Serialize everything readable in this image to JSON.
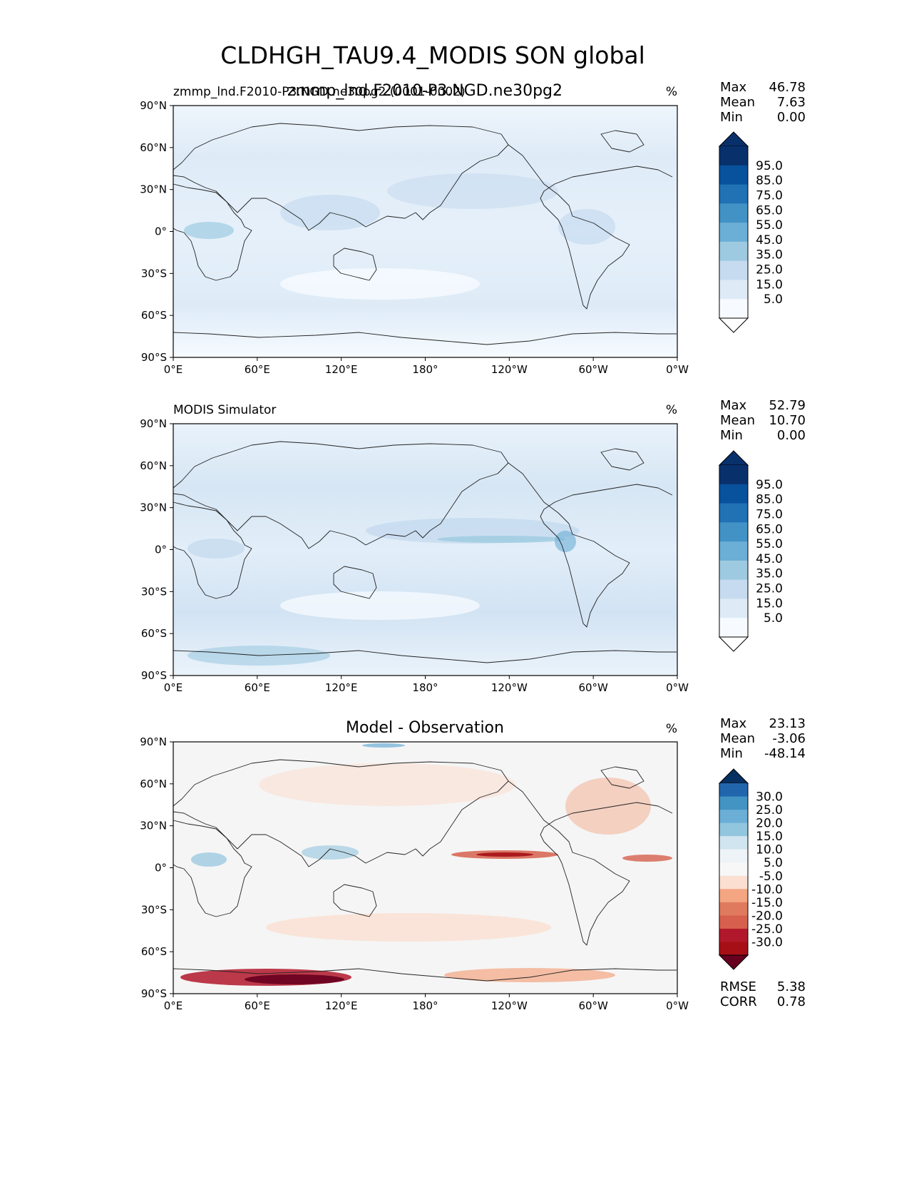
{
  "figure": {
    "title": "CLDHGH_TAU9.4_MODIS SON global"
  },
  "chart_data": [
    {
      "type": "heatmap",
      "panel": "test",
      "title": "zmmp_lnd.F2010-P3.NGD.ne30pg2",
      "left_label": "zmmp_lnd.F2010-P3.NGD.ne30pg2 (0001-0002)",
      "units": "%",
      "x_ticks": [
        "0°E",
        "60°E",
        "120°E",
        "180°",
        "120°W",
        "60°W",
        "0°W"
      ],
      "y_ticks": [
        "90°N",
        "60°N",
        "30°N",
        "0°",
        "30°S",
        "60°S",
        "90°S"
      ],
      "stats": {
        "labels": [
          "Max",
          "Mean",
          "Min"
        ],
        "values": [
          "46.78",
          "7.63",
          "0.00"
        ]
      },
      "colorbar": {
        "extend": "both",
        "labels": [
          "95.0",
          "85.0",
          "75.0",
          "65.0",
          "55.0",
          "45.0",
          "35.0",
          "25.0",
          "15.0",
          "5.0"
        ],
        "colors": [
          "#08306b",
          "#08519c",
          "#2171b5",
          "#4292c6",
          "#6baed6",
          "#9ecae1",
          "#c6dbef",
          "#deebf7",
          "#f7fbff"
        ],
        "over_color": "#08306b",
        "under_color": "#ffffff"
      }
    },
    {
      "type": "heatmap",
      "panel": "reference",
      "title": "",
      "left_label": "MODIS Simulator",
      "units": "%",
      "x_ticks": [
        "0°E",
        "60°E",
        "120°E",
        "180°",
        "120°W",
        "60°W",
        "0°W"
      ],
      "y_ticks": [
        "90°N",
        "60°N",
        "30°N",
        "0°",
        "30°S",
        "60°S",
        "90°S"
      ],
      "stats": {
        "labels": [
          "Max",
          "Mean",
          "Min"
        ],
        "values": [
          "52.79",
          "10.70",
          "0.00"
        ]
      },
      "colorbar": {
        "extend": "both",
        "labels": [
          "95.0",
          "85.0",
          "75.0",
          "65.0",
          "55.0",
          "45.0",
          "35.0",
          "25.0",
          "15.0",
          "5.0"
        ],
        "colors": [
          "#08306b",
          "#08519c",
          "#2171b5",
          "#4292c6",
          "#6baed6",
          "#9ecae1",
          "#c6dbef",
          "#deebf7",
          "#f7fbff"
        ],
        "over_color": "#08306b",
        "under_color": "#ffffff"
      }
    },
    {
      "type": "heatmap",
      "panel": "difference",
      "title": "Model - Observation",
      "left_label": "",
      "units": "%",
      "x_ticks": [
        "0°E",
        "60°E",
        "120°E",
        "180°",
        "120°W",
        "60°W",
        "0°W"
      ],
      "y_ticks": [
        "90°N",
        "60°N",
        "30°N",
        "0°",
        "30°S",
        "60°S",
        "90°S"
      ],
      "stats": {
        "labels": [
          "Max",
          "Mean",
          "Min"
        ],
        "values": [
          "23.13",
          "-3.06",
          "-48.14"
        ]
      },
      "extra_stats": {
        "labels": [
          "RMSE",
          "CORR"
        ],
        "values": [
          "5.38",
          "0.78"
        ]
      },
      "colorbar": {
        "extend": "both",
        "labels": [
          "30.0",
          "25.0",
          "20.0",
          "15.0",
          "10.0",
          "5.0",
          "-5.0",
          "-10.0",
          "-15.0",
          "-20.0",
          "-25.0",
          "-30.0"
        ],
        "colors": [
          "#2166ac",
          "#4393c3",
          "#6baed6",
          "#92c5de",
          "#d1e5f0",
          "#eef3f7",
          "#f7f7f7",
          "#fbe0d2",
          "#f4a582",
          "#e07a5f",
          "#d6604d",
          "#b2182b",
          "#a50f15"
        ],
        "over_color": "#053061",
        "under_color": "#67001f"
      }
    }
  ]
}
